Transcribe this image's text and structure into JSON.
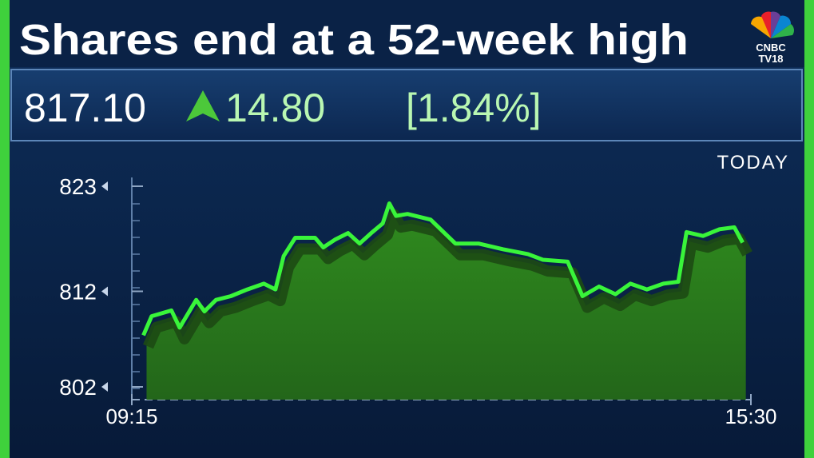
{
  "chart_data": {
    "type": "line",
    "title": "Shares end at a 52-week high",
    "subtitle": "TODAY",
    "logo": [
      "CNBC",
      "TV18"
    ],
    "quote": {
      "price": "817.10",
      "change": "14.80",
      "percent": "[1.84%]"
    },
    "xlim": [
      555,
      930
    ],
    "xticks": [
      {
        "value": 555,
        "label": "09:15"
      },
      {
        "value": 930,
        "label": "15:30"
      }
    ],
    "ylim": [
      802,
      823
    ],
    "yticks": [
      823,
      812,
      802
    ],
    "series": [
      {
        "color": "#39f53a",
        "x": [
          562,
          567,
          579,
          584,
          594,
          599,
          606,
          615,
          625,
          635,
          642,
          647,
          654,
          666,
          671,
          678,
          686,
          693,
          700,
          707,
          711,
          715,
          722,
          736,
          751,
          765,
          780,
          795,
          804,
          819,
          828,
          838,
          848,
          857,
          867,
          877,
          886,
          891,
          901,
          911,
          920,
          925
        ],
        "values": [
          807.4,
          809.4,
          810.0,
          808.2,
          811.1,
          809.9,
          811.1,
          811.5,
          812.2,
          812.8,
          812.2,
          815.7,
          817.6,
          817.6,
          816.6,
          817.4,
          818.1,
          817.0,
          818.1,
          819.1,
          821.2,
          819.9,
          820.1,
          819.5,
          817.0,
          817.0,
          816.4,
          815.9,
          815.3,
          815.1,
          811.5,
          812.5,
          811.7,
          812.8,
          812.2,
          812.8,
          813.0,
          818.2,
          817.8,
          818.5,
          818.7,
          817.1
        ]
      }
    ]
  }
}
